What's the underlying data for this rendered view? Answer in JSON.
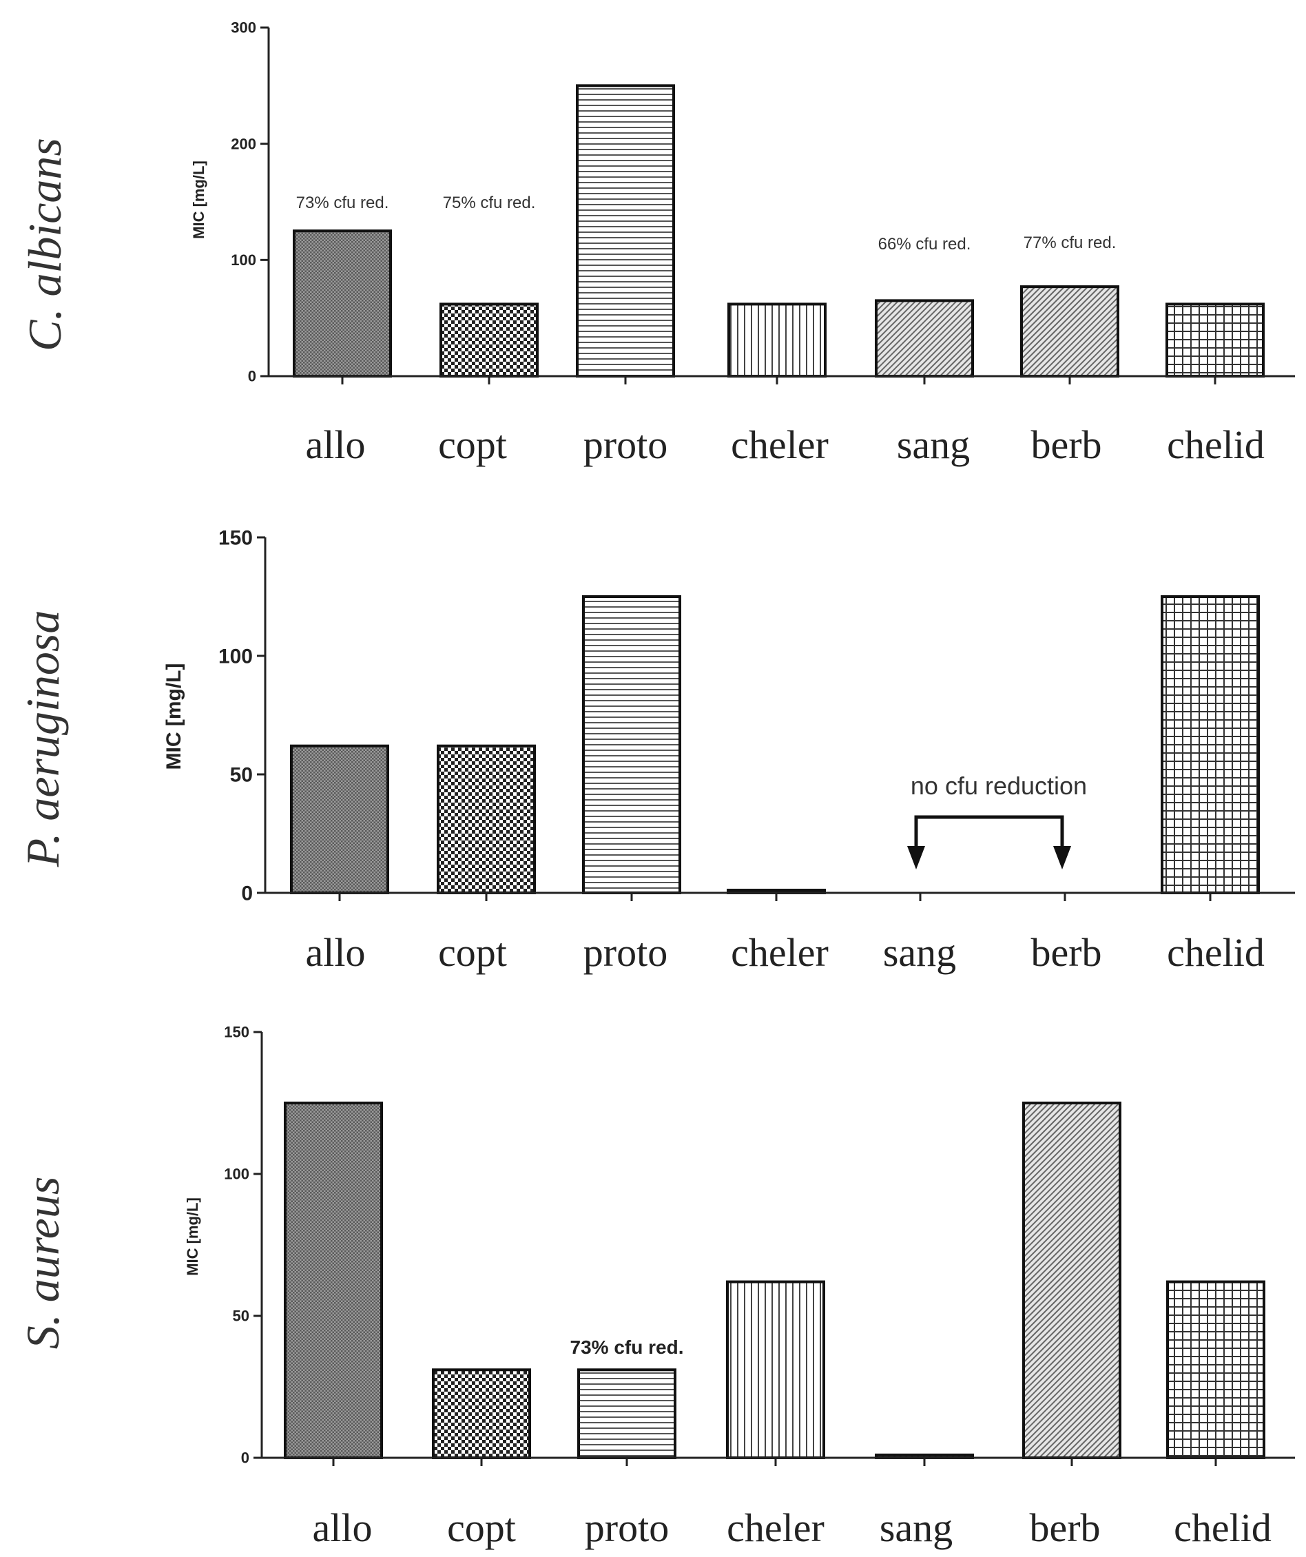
{
  "chart_data": [
    {
      "type": "bar",
      "species": "C. albicans",
      "ylabel": "MIC [mg/L]",
      "ylim": [
        0,
        300
      ],
      "yticks": [
        0,
        100,
        200,
        300
      ],
      "categories": [
        "allo",
        "copt",
        "proto",
        "cheler",
        "sang",
        "berb",
        "chelid"
      ],
      "values": [
        125,
        62,
        250,
        62,
        65,
        77,
        62
      ],
      "patterns": [
        "dense",
        "checker",
        "hstripe",
        "vstripe",
        "diag",
        "diag",
        "grid"
      ],
      "annotations": [
        {
          "category": "allo",
          "text": "73% cfu red."
        },
        {
          "category": "copt",
          "text": "75% cfu red."
        },
        {
          "category": "sang",
          "text": "66% cfu red."
        },
        {
          "category": "berb",
          "text": "77% cfu red."
        }
      ]
    },
    {
      "type": "bar",
      "species": "P. aeruginosa",
      "ylabel": "MIC [mg/L]",
      "ylim": [
        0,
        150
      ],
      "yticks": [
        0,
        50,
        100,
        150
      ],
      "categories": [
        "allo",
        "copt",
        "proto",
        "cheler",
        "sang",
        "berb",
        "chelid"
      ],
      "values": [
        62,
        62,
        125,
        1,
        0,
        0,
        125
      ],
      "patterns": [
        "dense",
        "checker",
        "hstripe",
        "vstripe",
        "diag",
        "diag",
        "grid"
      ],
      "bracket_note": "no cfu reduction"
    },
    {
      "type": "bar",
      "species": "S. aureus",
      "ylabel": "MIC [mg/L]",
      "ylim": [
        0,
        150
      ],
      "yticks": [
        0,
        50,
        100,
        150
      ],
      "categories": [
        "allo",
        "copt",
        "proto",
        "cheler",
        "sang",
        "berb",
        "chelid"
      ],
      "values": [
        125,
        31,
        31,
        62,
        1,
        125,
        62
      ],
      "patterns": [
        "dense",
        "checker",
        "hstripe",
        "vstripe",
        "diag",
        "diag",
        "grid"
      ],
      "annotations": [
        {
          "category": "proto",
          "text": "73% cfu red."
        }
      ]
    }
  ]
}
